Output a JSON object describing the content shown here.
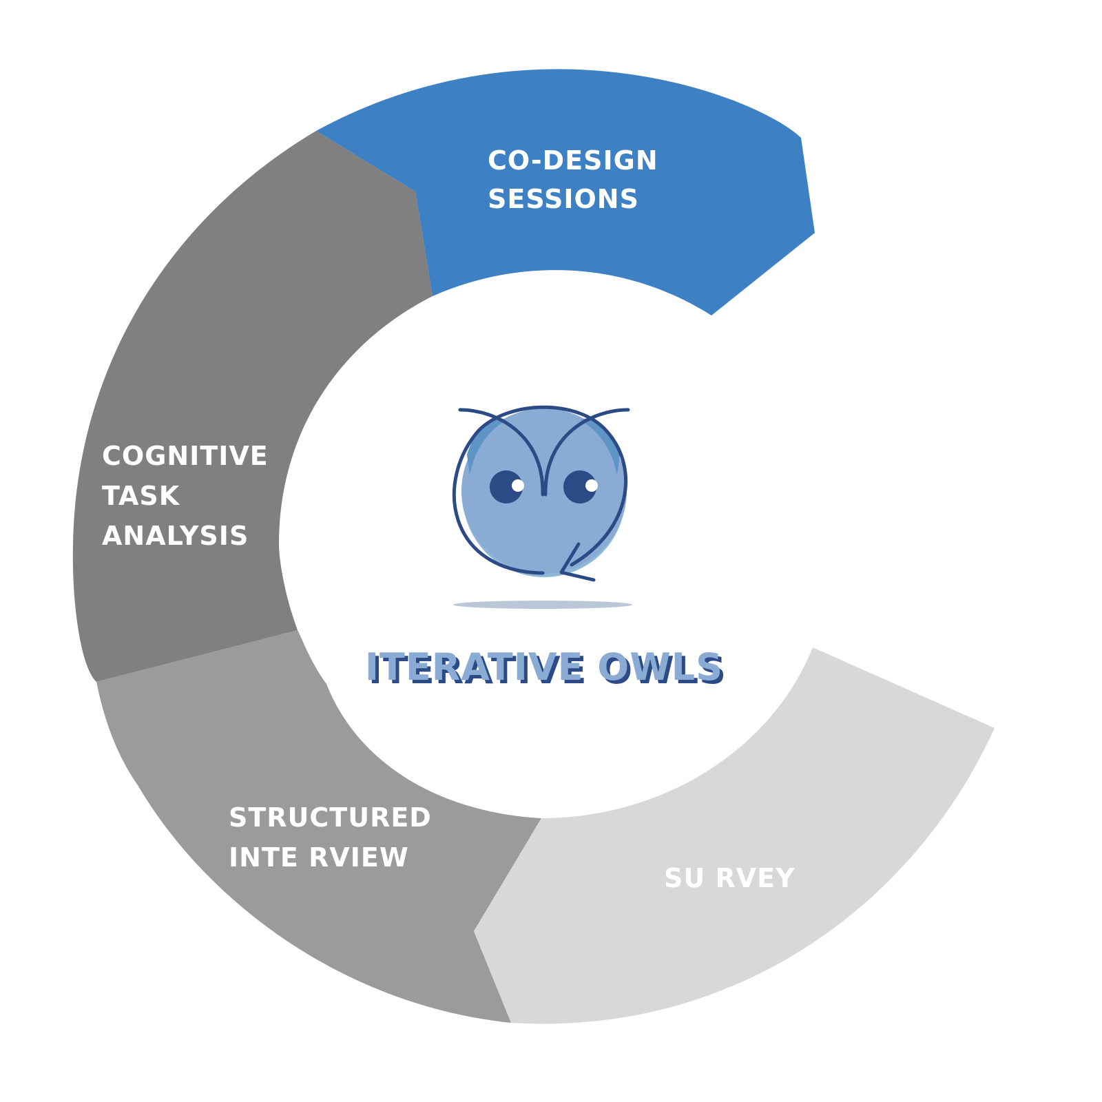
{
  "segments": [
    {
      "id": "co-design",
      "lines": [
        "CO-DESIGN",
        "SESSIONS"
      ],
      "color": "#3d81c4"
    },
    {
      "id": "cognitive-task-analysis",
      "lines": [
        "COGNITIVE",
        "TASK",
        "ANALYSIS"
      ],
      "color": "#808080"
    },
    {
      "id": "structured-interview",
      "lines": [
        "STRUCTURED",
        "INTE RVIEW"
      ],
      "color": "#9b9b9b"
    },
    {
      "id": "survey",
      "lines": [
        "SU RVEY"
      ],
      "color": "#d8d8d8"
    }
  ],
  "center": {
    "brand": "ITERATIVE OWLS",
    "brand_color": "#8aabd3",
    "brand_shadow_color": "#2c4a85",
    "logo": "owl-icon",
    "owl_outline_color": "#2c4a85",
    "owl_fill_color": "#8aabd3"
  }
}
